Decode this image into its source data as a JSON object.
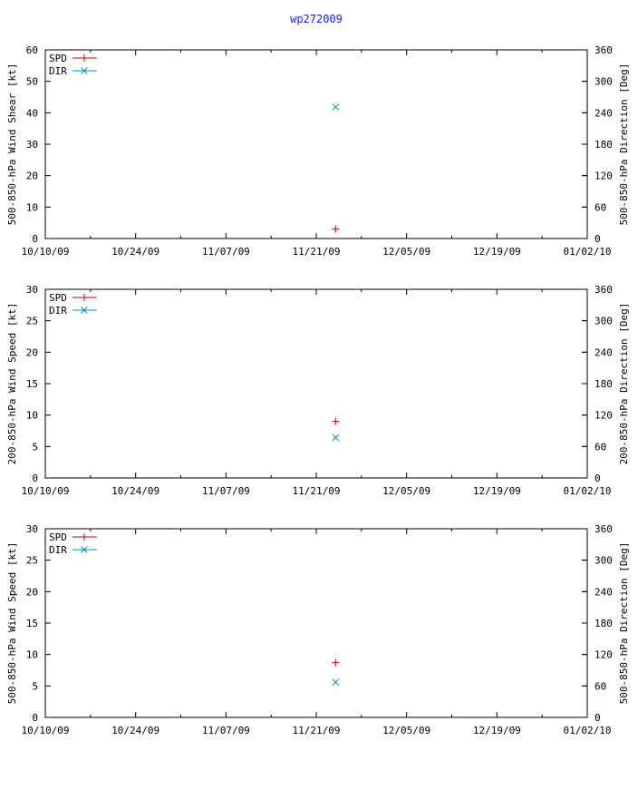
{
  "title": "wp272009",
  "title_color": "#1a1aff",
  "colors": {
    "spd": "#cc0000",
    "dir": "#0090c8",
    "axis": "#000000"
  },
  "chart_data": [
    {
      "type": "scatter",
      "ylabel_left": "500-850-hPa Wind Shear [kt]",
      "ylabel_right": "500-850-hPa Direction [Deg]",
      "ylim_left": [
        0,
        60
      ],
      "ylim_right": [
        0,
        360
      ],
      "yticks_left": [
        "0",
        "10",
        "20",
        "30",
        "40",
        "50",
        "60"
      ],
      "yticks_right": [
        "0",
        "60",
        "120",
        "180",
        "240",
        "300",
        "360"
      ],
      "xlim": [
        "10/10/09",
        "01/02/10"
      ],
      "xticks": [
        "10/10/09",
        "10/24/09",
        "11/07/09",
        "11/21/09",
        "12/05/09",
        "12/19/09",
        "01/02/10"
      ],
      "legend": {
        "placement": "top-left",
        "entries": [
          "SPD",
          "DIR"
        ]
      },
      "grid": false,
      "series": [
        {
          "name": "SPD",
          "axis": "left",
          "marker": "+",
          "points": [
            {
              "x": "11/24/09",
              "y": 3
            }
          ]
        },
        {
          "name": "DIR",
          "axis": "right",
          "marker": "x",
          "points": [
            {
              "x": "11/24/09",
              "y": 251
            }
          ]
        }
      ]
    },
    {
      "type": "scatter",
      "ylabel_left": "200-850-hPa Wind Speed [kt]",
      "ylabel_right": "200-850-hPa Direction [Deg]",
      "ylim_left": [
        0,
        30
      ],
      "ylim_right": [
        0,
        360
      ],
      "yticks_left": [
        "0",
        "5",
        "10",
        "15",
        "20",
        "25",
        "30"
      ],
      "yticks_right": [
        "0",
        "60",
        "120",
        "180",
        "240",
        "300",
        "360"
      ],
      "xlim": [
        "10/10/09",
        "01/02/10"
      ],
      "xticks": [
        "10/10/09",
        "10/24/09",
        "11/07/09",
        "11/21/09",
        "12/05/09",
        "12/19/09",
        "01/02/10"
      ],
      "legend": {
        "placement": "top-left",
        "entries": [
          "SPD",
          "DIR"
        ]
      },
      "grid": false,
      "series": [
        {
          "name": "SPD",
          "axis": "left",
          "marker": "+",
          "points": [
            {
              "x": "11/24/09",
              "y": 9
            }
          ]
        },
        {
          "name": "DIR",
          "axis": "right",
          "marker": "x",
          "points": [
            {
              "x": "11/24/09",
              "y": 77
            }
          ]
        }
      ]
    },
    {
      "type": "scatter",
      "ylabel_left": "500-850-hPa Wind Speed [kt]",
      "ylabel_right": "500-850-hPa Direction [Deg]",
      "ylim_left": [
        0,
        30
      ],
      "ylim_right": [
        0,
        360
      ],
      "yticks_left": [
        "0",
        "5",
        "10",
        "15",
        "20",
        "25",
        "30"
      ],
      "yticks_right": [
        "0",
        "60",
        "120",
        "180",
        "240",
        "300",
        "360"
      ],
      "xlim": [
        "10/10/09",
        "01/02/10"
      ],
      "xticks": [
        "10/10/09",
        "10/24/09",
        "11/07/09",
        "11/21/09",
        "12/05/09",
        "12/19/09",
        "01/02/10"
      ],
      "legend": {
        "placement": "top-left",
        "entries": [
          "SPD",
          "DIR"
        ]
      },
      "grid": false,
      "series": [
        {
          "name": "SPD",
          "axis": "left",
          "marker": "+",
          "points": [
            {
              "x": "11/24/09",
              "y": 8.7
            }
          ]
        },
        {
          "name": "DIR",
          "axis": "right",
          "marker": "x",
          "points": [
            {
              "x": "11/24/09",
              "y": 67
            }
          ]
        }
      ]
    }
  ]
}
